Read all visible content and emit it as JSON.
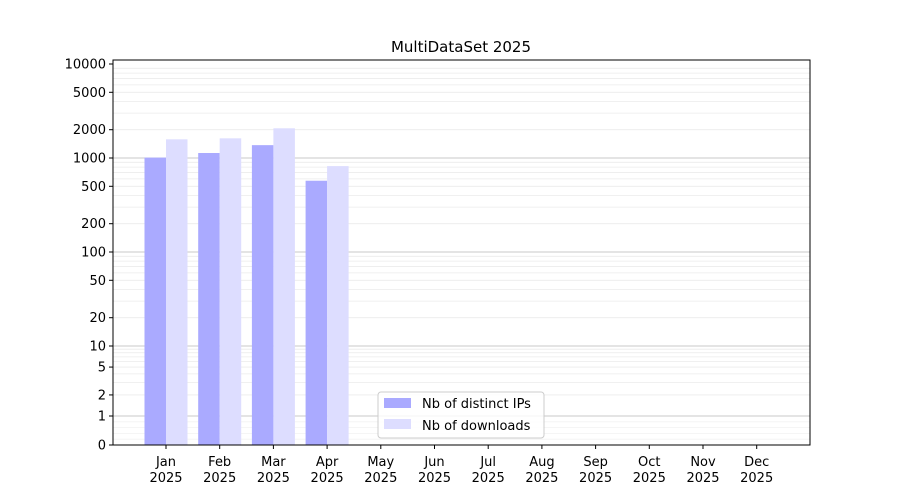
{
  "chart_data": {
    "type": "bar",
    "title": "MultiDataSet 2025",
    "xlabel": "",
    "ylabel": "",
    "yscale": "symlog",
    "ylim": [
      0,
      10000
    ],
    "grid": true,
    "legend_position": "lower-center",
    "categories": [
      "Jan\n2025",
      "Feb\n2025",
      "Mar\n2025",
      "Apr\n2025",
      "May\n2025",
      "Jun\n2025",
      "Jul\n2025",
      "Aug\n2025",
      "Sep\n2025",
      "Oct\n2025",
      "Nov\n2025",
      "Dec\n2025"
    ],
    "y_ticks": [
      0,
      1,
      2,
      5,
      10,
      20,
      50,
      100,
      200,
      500,
      1000,
      2000,
      5000,
      10000
    ],
    "series": [
      {
        "name": "Nb of distinct IPs",
        "color": "#aaaaff",
        "values": [
          1010,
          1130,
          1370,
          573,
          0,
          0,
          0,
          0,
          0,
          0,
          0,
          0
        ]
      },
      {
        "name": "Nb of downloads",
        "color": "#ddddff",
        "values": [
          1580,
          1620,
          2070,
          820,
          0,
          0,
          0,
          0,
          0,
          0,
          0,
          0
        ]
      }
    ]
  }
}
